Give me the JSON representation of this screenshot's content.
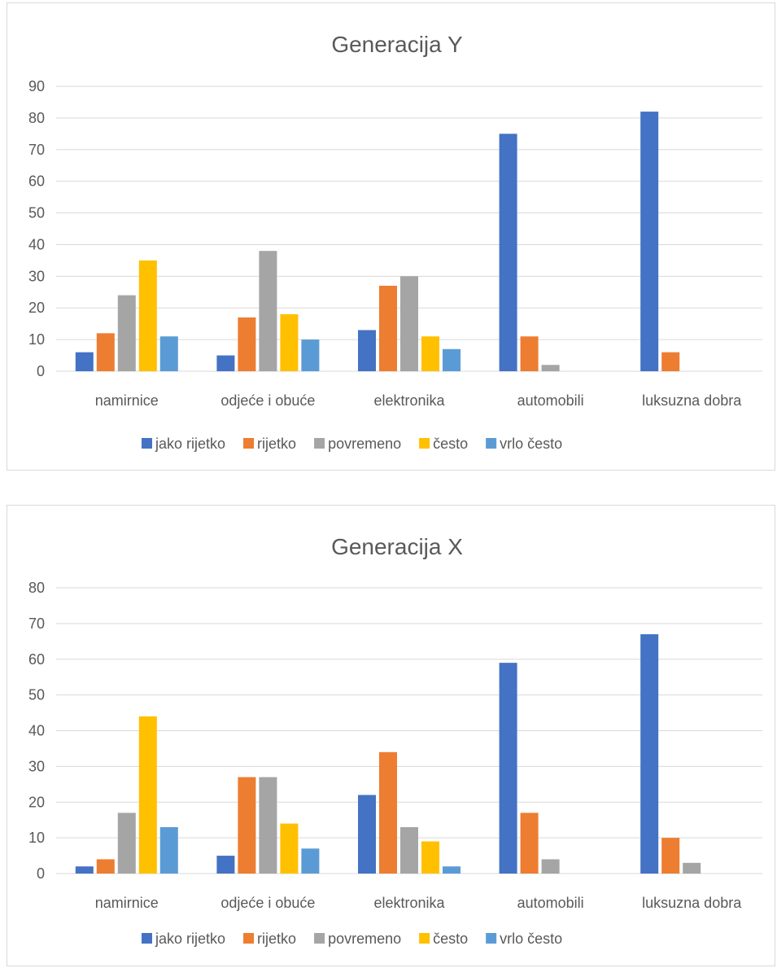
{
  "chart_data": [
    {
      "type": "bar",
      "title": "Generacija Y",
      "categories": [
        "namirnice",
        "odjeće i obuće",
        "elektronika",
        "automobili",
        "luksuzna dobra"
      ],
      "series": [
        {
          "name": "jako rijetko",
          "color": "#4472C4",
          "values": [
            6,
            5,
            13,
            75,
            82
          ]
        },
        {
          "name": "rijetko",
          "color": "#ED7D31",
          "values": [
            12,
            17,
            27,
            11,
            6
          ]
        },
        {
          "name": "povremeno",
          "color": "#A5A5A5",
          "values": [
            24,
            38,
            30,
            2,
            0
          ]
        },
        {
          "name": "često",
          "color": "#FFC000",
          "values": [
            35,
            18,
            11,
            0,
            0
          ]
        },
        {
          "name": "vrlo često",
          "color": "#5B9BD5",
          "values": [
            11,
            10,
            7,
            0,
            0
          ]
        }
      ],
      "ylim": [
        0,
        90
      ],
      "yticks": [
        0,
        10,
        20,
        30,
        40,
        50,
        60,
        70,
        80,
        90
      ],
      "grid": true,
      "legend_position": "bottom"
    },
    {
      "type": "bar",
      "title": "Generacija X",
      "categories": [
        "namirnice",
        "odjeće i obuće",
        "elektronika",
        "automobili",
        "luksuzna dobra"
      ],
      "series": [
        {
          "name": "jako rijetko",
          "color": "#4472C4",
          "values": [
            2,
            5,
            22,
            59,
            67
          ]
        },
        {
          "name": "rijetko",
          "color": "#ED7D31",
          "values": [
            4,
            27,
            34,
            17,
            10
          ]
        },
        {
          "name": "povremeno",
          "color": "#A5A5A5",
          "values": [
            17,
            27,
            13,
            4,
            3
          ]
        },
        {
          "name": "često",
          "color": "#FFC000",
          "values": [
            44,
            14,
            9,
            0,
            0
          ]
        },
        {
          "name": "vrlo često",
          "color": "#5B9BD5",
          "values": [
            13,
            7,
            2,
            0,
            0
          ]
        }
      ],
      "ylim": [
        0,
        80
      ],
      "yticks": [
        0,
        10,
        20,
        30,
        40,
        50,
        60,
        70,
        80
      ],
      "grid": true,
      "legend_position": "bottom"
    }
  ]
}
